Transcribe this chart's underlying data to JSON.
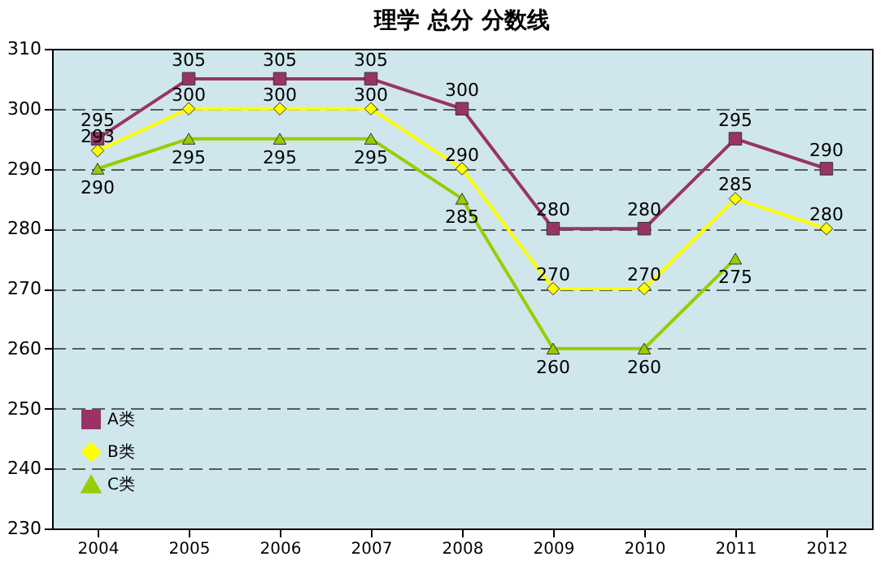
{
  "chart_data": {
    "type": "line",
    "title": "理学    总分    分数线",
    "categories": [
      "2004",
      "2005",
      "2006",
      "2007",
      "2008",
      "2009",
      "2010",
      "2011",
      "2012"
    ],
    "series": [
      {
        "name": "A类",
        "color": "#993366",
        "marker": "square",
        "values": [
          295,
          305,
          305,
          305,
          300,
          280,
          280,
          295,
          290
        ]
      },
      {
        "name": "B类",
        "color": "#ffff00",
        "marker": "diamond",
        "values": [
          293,
          300,
          300,
          300,
          290,
          270,
          270,
          285,
          280
        ]
      },
      {
        "name": "C类",
        "color": "#99cc00",
        "marker": "triangle",
        "values": [
          290,
          295,
          295,
          295,
          285,
          260,
          260,
          275,
          null
        ]
      }
    ],
    "ylim": [
      230,
      310
    ],
    "yticks": [
      230,
      240,
      250,
      260,
      270,
      280,
      290,
      300,
      310
    ],
    "grid": "y",
    "legend": "bottom left",
    "data_labels": true
  }
}
